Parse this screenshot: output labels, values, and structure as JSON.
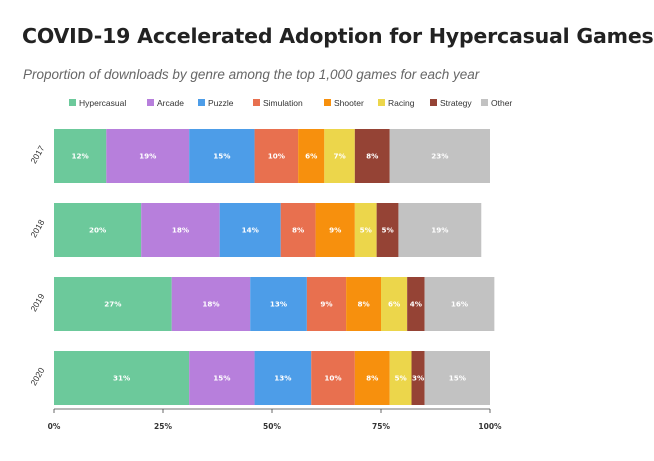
{
  "chart_data": {
    "type": "bar",
    "orientation": "horizontal",
    "stacked": true,
    "title": "COVID-19 Accelerated Adoption for Hypercasual Games",
    "subtitle": "Proportion of downloads by genre among the top 1,000 games for each year",
    "categories": [
      "2017",
      "2018",
      "2019",
      "2020"
    ],
    "series": [
      {
        "name": "Hypercasual",
        "color": "#6cc99b",
        "values": [
          12,
          20,
          27,
          31
        ],
        "labels": [
          "12%",
          "20%",
          "27%",
          "31%"
        ]
      },
      {
        "name": "Arcade",
        "color": "#b77fdc",
        "values": [
          19,
          18,
          18,
          15
        ],
        "labels": [
          "19%",
          "18%",
          "18%",
          "15%"
        ]
      },
      {
        "name": "Puzzle",
        "color": "#4d9de8",
        "values": [
          15,
          14,
          13,
          13
        ],
        "labels": [
          "15%",
          "14%",
          "13%",
          "13%"
        ]
      },
      {
        "name": "Simulation",
        "color": "#e8704f",
        "values": [
          10,
          8,
          9,
          10
        ],
        "labels": [
          "10%",
          "8%",
          "9%",
          "10%"
        ]
      },
      {
        "name": "Shooter",
        "color": "#f7900d",
        "values": [
          6,
          9,
          8,
          8
        ],
        "labels": [
          "6%",
          "9%",
          "8%",
          "8%"
        ]
      },
      {
        "name": "Racing",
        "color": "#ecd64b",
        "values": [
          7,
          5,
          6,
          5
        ],
        "labels": [
          "7%",
          "5%",
          "6%",
          "5%"
        ]
      },
      {
        "name": "Strategy",
        "color": "#954335",
        "values": [
          8,
          5,
          4,
          3
        ],
        "labels": [
          "8%",
          "5%",
          "4%",
          "3%"
        ]
      },
      {
        "name": "Other",
        "color": "#c2c2c2",
        "values": [
          23,
          19,
          16,
          15
        ],
        "labels": [
          "23%",
          "19%",
          "16%",
          "15%"
        ]
      }
    ],
    "xlim": [
      0,
      100
    ],
    "xticks": [
      0,
      25,
      50,
      75,
      100
    ],
    "xtick_labels": [
      "0%",
      "25%",
      "50%",
      "75%",
      "100%"
    ],
    "legend_position": "top",
    "grid": false
  }
}
